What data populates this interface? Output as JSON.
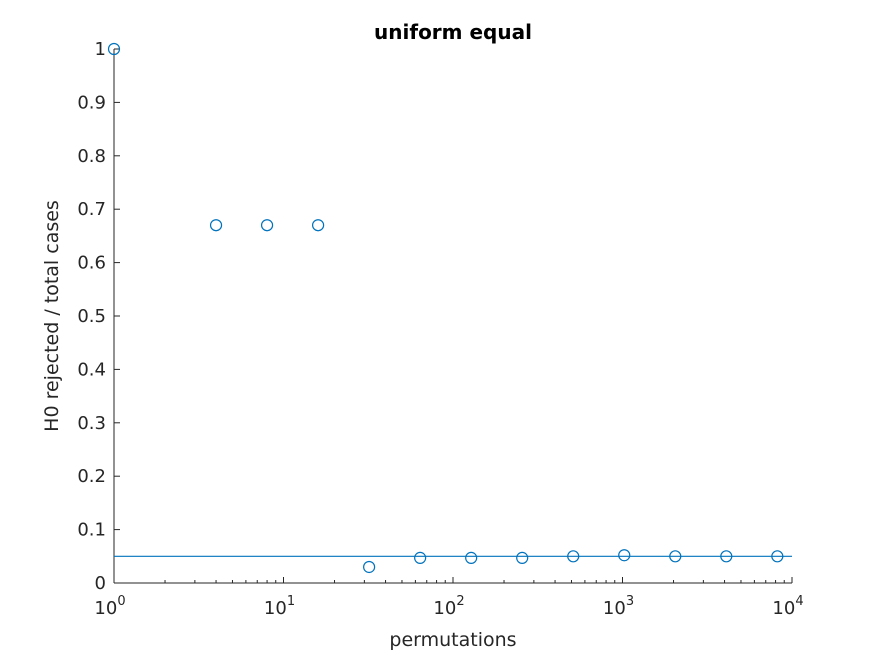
{
  "chart_data": {
    "type": "scatter",
    "title": "uniform equal",
    "xlabel": "permutations",
    "ylabel": "H0 rejected / total cases",
    "xscale": "log",
    "xlim": [
      1,
      10000
    ],
    "ylim": [
      0,
      1
    ],
    "grid": false,
    "x_ticks": [
      {
        "base": "10",
        "exp": "0",
        "value": 1
      },
      {
        "base": "10",
        "exp": "1",
        "value": 10
      },
      {
        "base": "10",
        "exp": "2",
        "value": 100
      },
      {
        "base": "10",
        "exp": "3",
        "value": 1000
      },
      {
        "base": "10",
        "exp": "4",
        "value": 10000
      }
    ],
    "y_ticks": [
      "0",
      "0.1",
      "0.2",
      "0.3",
      "0.4",
      "0.5",
      "0.6",
      "0.7",
      "0.8",
      "0.9",
      "1"
    ],
    "series": [
      {
        "marker": "circle",
        "x": [
          1,
          4,
          8,
          16,
          32,
          64,
          128,
          256,
          512,
          1024,
          2048,
          4096,
          8192
        ],
        "y": [
          1,
          0.67,
          0.67,
          0.67,
          0.03,
          0.047,
          0.047,
          0.047,
          0.05,
          0.052,
          0.05,
          0.05,
          0.05
        ]
      }
    ],
    "reference_line": {
      "y": 0.05
    },
    "color": "#0072BD",
    "axis_color": "#262626"
  }
}
